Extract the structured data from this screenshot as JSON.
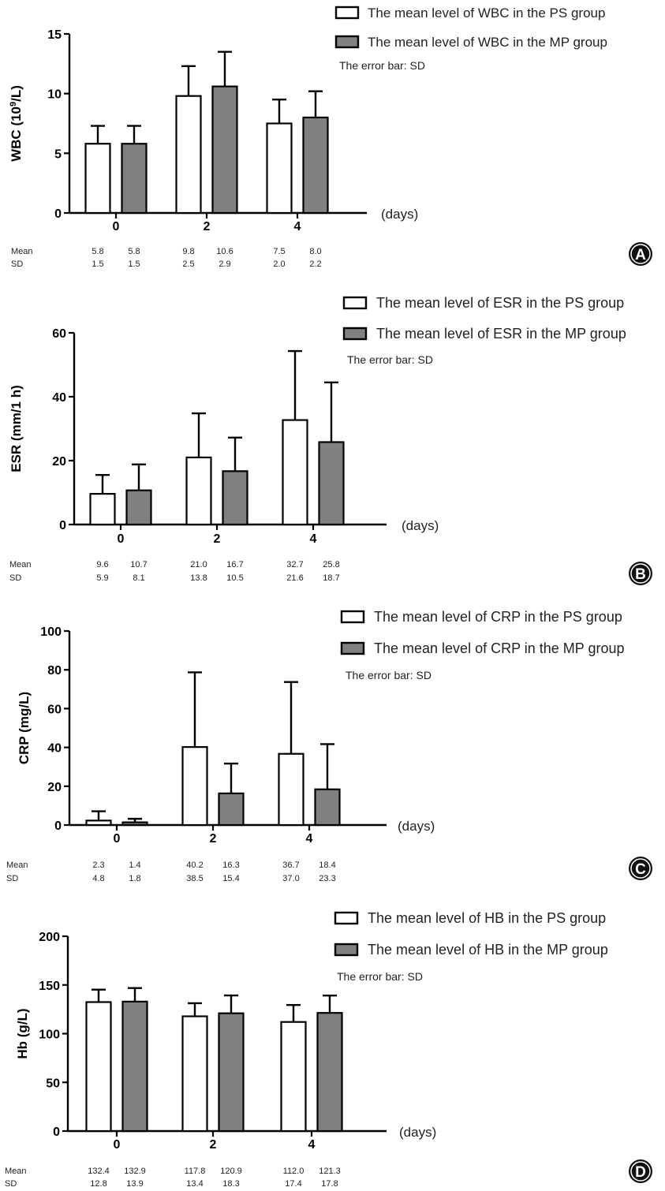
{
  "figure": {
    "x_unit_label": "(days)",
    "mean_row_label": "Mean",
    "sd_row_label": "SD",
    "error_note": "The error bar: SD",
    "colors": {
      "ps": "#ffffff",
      "mp": "#808080",
      "stroke": "#000000"
    }
  },
  "chart_data": [
    {
      "type": "bar",
      "panel_letter": "A",
      "ylabel": "WBC (10",
      "ylabel_sup": "9",
      "ylabel_tail": "/L)",
      "ylim": [
        0,
        15
      ],
      "yticks": [
        0,
        5,
        10,
        15
      ],
      "categories": [
        "0",
        "2",
        "4"
      ],
      "series": [
        {
          "name": "The mean level of WBC in the PS group",
          "values": [
            5.8,
            9.8,
            7.5
          ],
          "sd": [
            1.5,
            2.5,
            2.0
          ],
          "mean_labels": [
            "5.8",
            "9.8",
            "7.5"
          ],
          "sd_labels": [
            "1.5",
            "2.5",
            "2.0"
          ]
        },
        {
          "name": "The mean level of WBC in the MP group",
          "values": [
            5.8,
            10.6,
            8.0
          ],
          "sd": [
            1.5,
            2.9,
            2.2
          ],
          "mean_labels": [
            "5.8",
            "10.6",
            "8.0"
          ],
          "sd_labels": [
            "1.5",
            "2.9",
            "2.2"
          ]
        }
      ]
    },
    {
      "type": "bar",
      "panel_letter": "B",
      "ylabel": "ESR (mm/1 h)",
      "ylim": [
        0,
        60
      ],
      "yticks": [
        0,
        20,
        40,
        60
      ],
      "categories": [
        "0",
        "2",
        "4"
      ],
      "series": [
        {
          "name": "The mean level of ESR in the PS group",
          "values": [
            9.6,
            21.0,
            32.7
          ],
          "sd": [
            5.9,
            13.8,
            21.6
          ],
          "mean_labels": [
            "9.6",
            "21.0",
            "32.7"
          ],
          "sd_labels": [
            "5.9",
            "13.8",
            "21.6"
          ]
        },
        {
          "name": "The mean level of ESR in the MP group",
          "values": [
            10.7,
            16.7,
            25.8
          ],
          "sd": [
            8.1,
            10.5,
            18.7
          ],
          "mean_labels": [
            "10.7",
            "16.7",
            "25.8"
          ],
          "sd_labels": [
            "8.1",
            "10.5",
            "18.7"
          ]
        }
      ]
    },
    {
      "type": "bar",
      "panel_letter": "C",
      "ylabel": "CRP (mg/L)",
      "ylim": [
        0,
        100
      ],
      "yticks": [
        0,
        20,
        40,
        60,
        80,
        100
      ],
      "categories": [
        "0",
        "2",
        "4"
      ],
      "series": [
        {
          "name": "The mean level of CRP in the PS group",
          "values": [
            2.3,
            40.2,
            36.7
          ],
          "sd": [
            4.8,
            38.5,
            37.0
          ],
          "mean_labels": [
            "2.3",
            "40.2",
            "36.7"
          ],
          "sd_labels": [
            "4.8",
            "38.5",
            "37.0"
          ]
        },
        {
          "name": "The mean level of CRP in the MP group",
          "values": [
            1.4,
            16.3,
            18.4
          ],
          "sd": [
            1.8,
            15.4,
            23.3
          ],
          "mean_labels": [
            "1.4",
            "16.3",
            "18.4"
          ],
          "sd_labels": [
            "1.8",
            "15.4",
            "23.3"
          ]
        }
      ]
    },
    {
      "type": "bar",
      "panel_letter": "D",
      "ylabel": "Hb (g/L)",
      "ylim": [
        0,
        200
      ],
      "yticks": [
        0,
        50,
        100,
        150,
        200
      ],
      "categories": [
        "0",
        "2",
        "4"
      ],
      "series": [
        {
          "name": "The mean level of HB in the PS group",
          "values": [
            132.4,
            117.8,
            112.0
          ],
          "sd": [
            12.8,
            13.4,
            17.4
          ],
          "mean_labels": [
            "132.4",
            "117.8",
            "112.0"
          ],
          "sd_labels": [
            "12.8",
            "13.4",
            "17.4"
          ]
        },
        {
          "name": "The mean level of HB in the MP group",
          "values": [
            132.9,
            120.9,
            121.3
          ],
          "sd": [
            13.9,
            18.3,
            17.8
          ],
          "mean_labels": [
            "132.9",
            "120.9",
            "121.3"
          ],
          "sd_labels": [
            "13.9",
            "18.3",
            "17.8"
          ]
        }
      ]
    }
  ]
}
